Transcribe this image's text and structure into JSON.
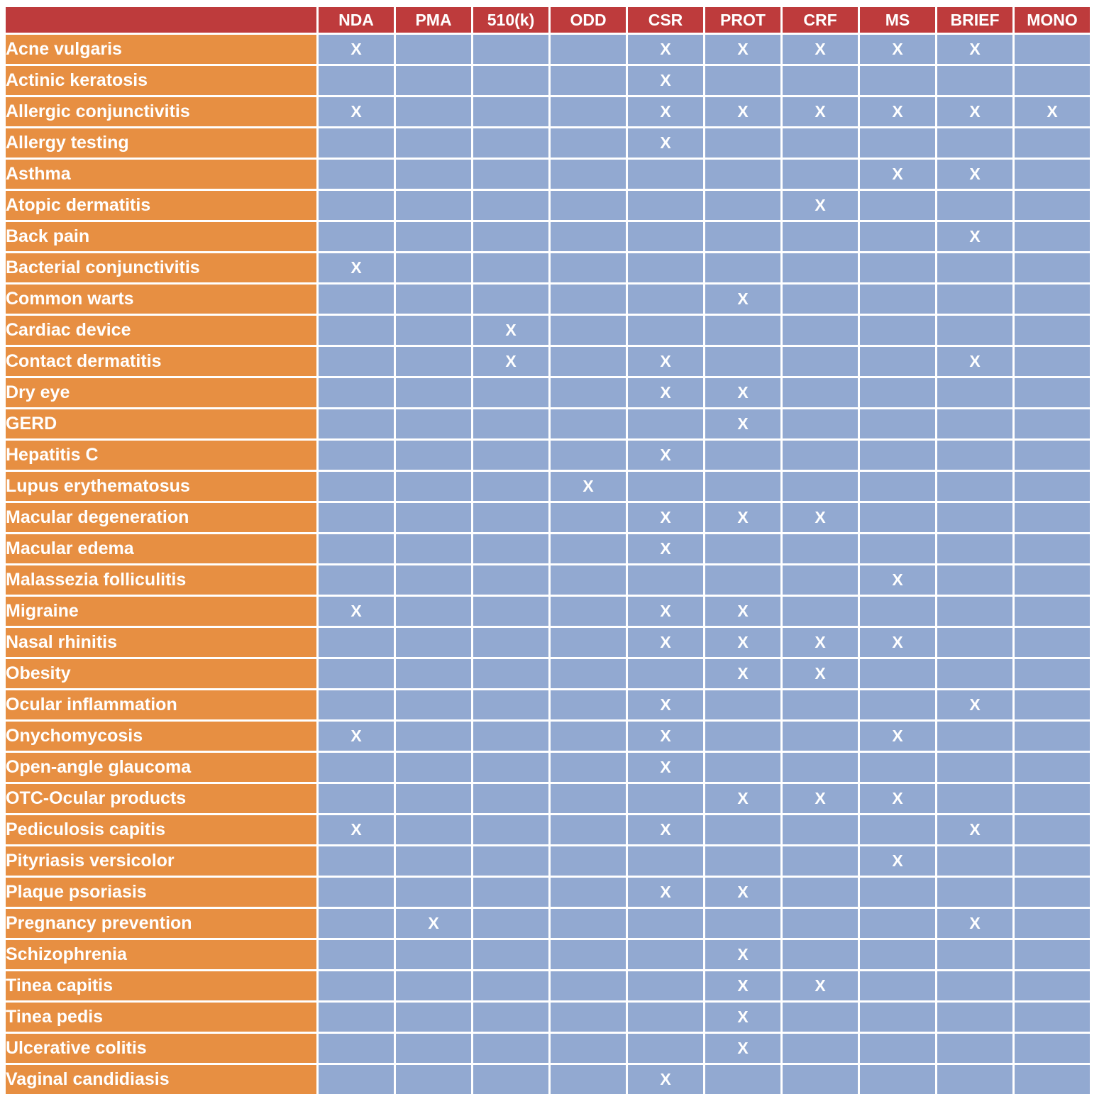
{
  "table": {
    "corner_label": "",
    "mark_glyph": "X",
    "columns": [
      "NDA",
      "PMA",
      "510(k)",
      "ODD",
      "CSR",
      "PROT",
      "CRF",
      "MS",
      "BRIEF",
      "MONO"
    ],
    "rows": [
      {
        "label": "Acne vulgaris",
        "marks": [
          "NDA",
          "CSR",
          "PROT",
          "CRF",
          "MS",
          "BRIEF"
        ]
      },
      {
        "label": "Actinic keratosis",
        "marks": [
          "CSR"
        ]
      },
      {
        "label": "Allergic conjunctivitis",
        "marks": [
          "NDA",
          "CSR",
          "PROT",
          "CRF",
          "MS",
          "BRIEF",
          "MONO"
        ]
      },
      {
        "label": "Allergy testing",
        "marks": [
          "CSR"
        ]
      },
      {
        "label": "Asthma",
        "marks": [
          "MS",
          "BRIEF"
        ]
      },
      {
        "label": "Atopic dermatitis",
        "marks": [
          "CRF"
        ]
      },
      {
        "label": "Back pain",
        "marks": [
          "BRIEF"
        ]
      },
      {
        "label": "Bacterial conjunctivitis",
        "marks": [
          "NDA"
        ]
      },
      {
        "label": "Common warts",
        "marks": [
          "PROT"
        ]
      },
      {
        "label": "Cardiac device",
        "marks": [
          "510(k)"
        ]
      },
      {
        "label": "Contact dermatitis",
        "marks": [
          "510(k)",
          "CSR",
          "BRIEF"
        ]
      },
      {
        "label": "Dry eye",
        "marks": [
          "CSR",
          "PROT"
        ]
      },
      {
        "label": "GERD",
        "marks": [
          "PROT"
        ]
      },
      {
        "label": "Hepatitis C",
        "marks": [
          "CSR"
        ]
      },
      {
        "label": "Lupus erythematosus",
        "marks": [
          "ODD"
        ]
      },
      {
        "label": "Macular degeneration",
        "marks": [
          "CSR",
          "PROT",
          "CRF"
        ]
      },
      {
        "label": "Macular edema",
        "marks": [
          "CSR"
        ]
      },
      {
        "label": "Malassezia folliculitis",
        "marks": [
          "MS"
        ]
      },
      {
        "label": "Migraine",
        "marks": [
          "NDA",
          "CSR",
          "PROT"
        ]
      },
      {
        "label": "Nasal rhinitis",
        "marks": [
          "CSR",
          "PROT",
          "CRF",
          "MS"
        ]
      },
      {
        "label": "Obesity",
        "marks": [
          "PROT",
          "CRF"
        ]
      },
      {
        "label": "Ocular inflammation",
        "marks": [
          "CSR",
          "BRIEF"
        ]
      },
      {
        "label": "Onychomycosis",
        "marks": [
          "NDA",
          "CSR",
          "MS"
        ]
      },
      {
        "label": "Open-angle glaucoma",
        "marks": [
          "CSR"
        ]
      },
      {
        "label": "OTC-Ocular products",
        "marks": [
          "PROT",
          "CRF",
          "MS"
        ]
      },
      {
        "label": "Pediculosis capitis",
        "marks": [
          "NDA",
          "CSR",
          "BRIEF"
        ]
      },
      {
        "label": "Pityriasis versicolor",
        "marks": [
          "MS"
        ]
      },
      {
        "label": "Plaque psoriasis",
        "marks": [
          "CSR",
          "PROT"
        ]
      },
      {
        "label": "Pregnancy prevention",
        "marks": [
          "PMA",
          "BRIEF"
        ]
      },
      {
        "label": "Schizophrenia",
        "marks": [
          "PROT"
        ]
      },
      {
        "label": "Tinea capitis",
        "marks": [
          "PROT",
          "CRF"
        ]
      },
      {
        "label": "Tinea pedis",
        "marks": [
          "PROT"
        ]
      },
      {
        "label": "Ulcerative colitis",
        "marks": [
          "PROT"
        ]
      },
      {
        "label": "Vaginal candidiasis",
        "marks": [
          "CSR"
        ]
      }
    ],
    "colors": {
      "header_bg": "#be3b3c",
      "row_label_bg": "#e78f42",
      "cell_bg": "#92a9d1",
      "grid": "#ffffff",
      "text": "#ffffff"
    }
  }
}
